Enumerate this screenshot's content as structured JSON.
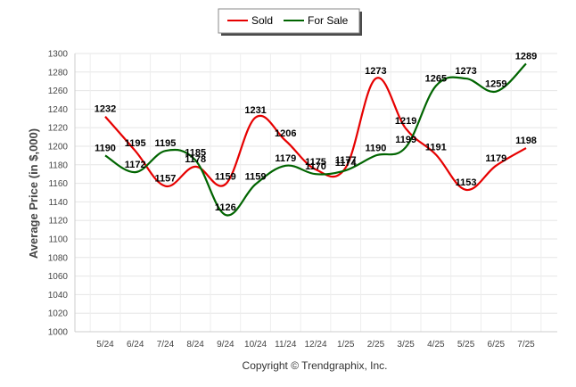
{
  "chart_data": {
    "type": "line",
    "categories": [
      "5/24",
      "6/24",
      "7/24",
      "8/24",
      "9/24",
      "10/24",
      "11/24",
      "12/24",
      "1/25",
      "2/25",
      "3/25",
      "4/25",
      "5/25",
      "6/25",
      "7/25"
    ],
    "series": [
      {
        "name": "Sold",
        "color": "#e60000",
        "values": [
          1232,
          1195,
          1157,
          1178,
          1159,
          1231,
          1206,
          1175,
          1177,
          1273,
          1219,
          1191,
          1153,
          1179,
          1198
        ]
      },
      {
        "name": "For Sale",
        "color": "#006400",
        "values": [
          1190,
          1172,
          1195,
          1185,
          1126,
          1159,
          1179,
          1170,
          1174,
          1190,
          1199,
          1265,
          1273,
          1259,
          1289
        ]
      }
    ],
    "ylabel": "Average Price (in $,000)",
    "xlabel": "",
    "ylim": [
      1000,
      1300
    ],
    "yticks": [
      1000,
      1020,
      1040,
      1060,
      1080,
      1100,
      1120,
      1140,
      1160,
      1180,
      1200,
      1220,
      1240,
      1260,
      1280,
      1300
    ],
    "grid": true,
    "legend_position": "top-center"
  },
  "footer": {
    "copyright": "Copyright © Trendgraphix, Inc."
  }
}
